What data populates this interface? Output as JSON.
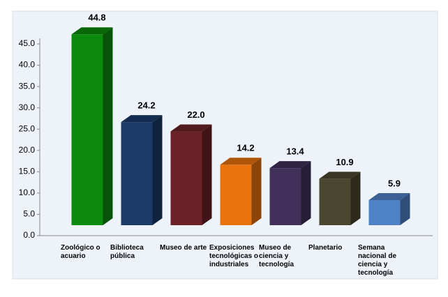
{
  "chart_data": {
    "type": "bar3d",
    "categories": [
      "Zoológico o acuario",
      "Biblioteca pública",
      "Museo de arte",
      "Exposiciones tecnológicas o industriales",
      "Museo de ciencia y tecnología",
      "Planetario",
      "Semana nacional de ciencia y tecnología"
    ],
    "values": [
      44.8,
      24.2,
      22.0,
      14.2,
      13.4,
      10.9,
      5.9
    ],
    "value_labels": [
      "44.8",
      "24.2",
      "22.0",
      "14.2",
      "13.4",
      "10.9",
      "5.9"
    ],
    "colors": [
      "#0b8a0b",
      "#1b3a68",
      "#6a2226",
      "#e8730d",
      "#40305a",
      "#4b462f",
      "#4f81c6"
    ],
    "ylim": [
      0,
      45
    ],
    "yticks": [
      {
        "value": 0,
        "label": "0.0"
      },
      {
        "value": 5,
        "label": "5.0"
      },
      {
        "value": 10,
        "label": "10.0"
      },
      {
        "value": 15,
        "label": "15.0"
      },
      {
        "value": 20,
        "label": "20.0"
      },
      {
        "value": 25,
        "label": "25.0"
      },
      {
        "value": 30,
        "label": "30.0"
      },
      {
        "value": 35,
        "label": "35.0"
      },
      {
        "value": 40,
        "label": "40.0"
      },
      {
        "value": 45,
        "label": "45.0"
      }
    ]
  }
}
